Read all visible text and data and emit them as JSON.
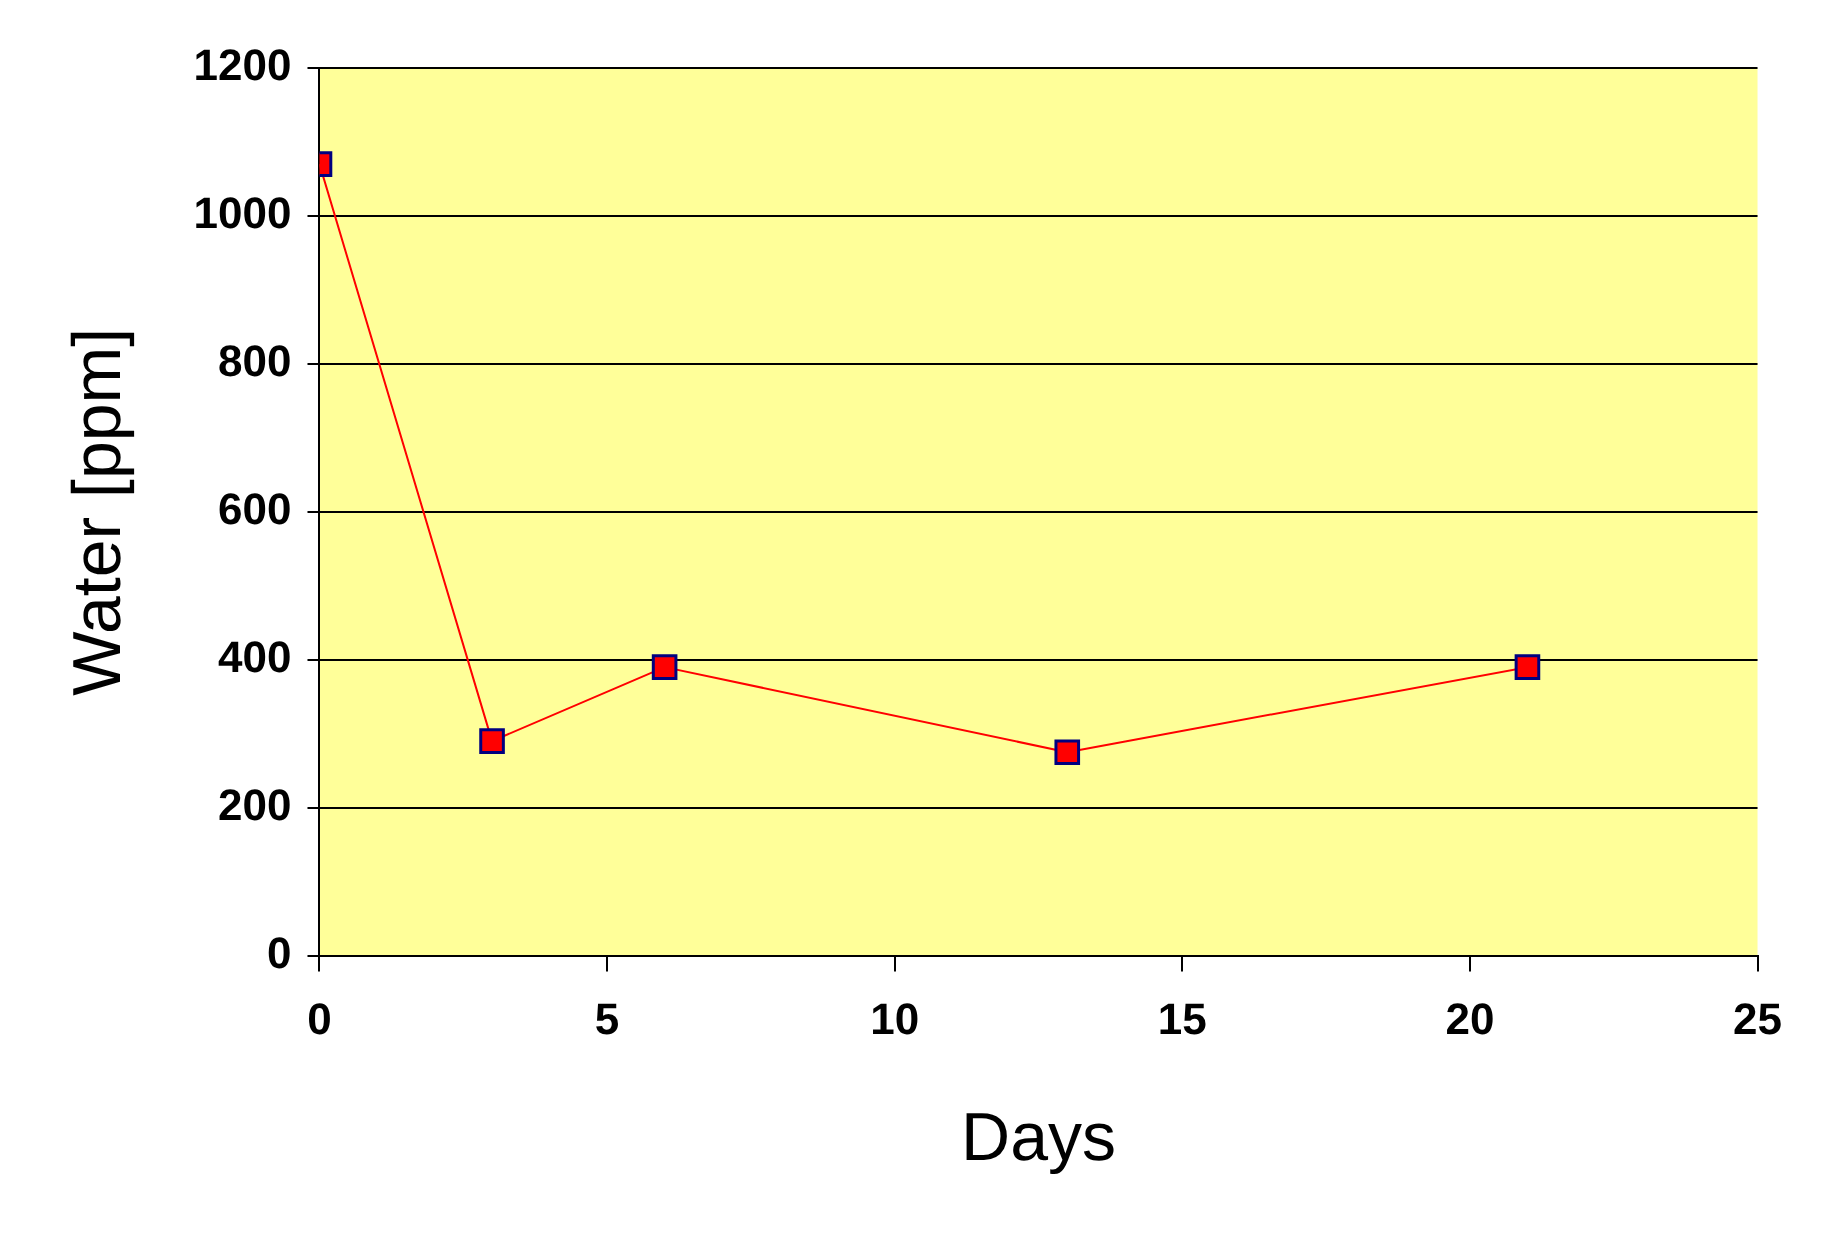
{
  "chart_data": {
    "type": "line",
    "xlabel": "Days",
    "ylabel": "Water [ppm]",
    "x": [
      0,
      3,
      6,
      13,
      21
    ],
    "series": [
      {
        "color": "#ff0000",
        "values": [
          1070,
          290,
          390,
          275,
          390
        ]
      }
    ],
    "xlim": [
      0,
      25
    ],
    "xticks": [
      0,
      5,
      10,
      15,
      20,
      25
    ],
    "ylim": [
      0,
      1200
    ],
    "yticks": [
      0,
      200,
      400,
      600,
      800,
      1000,
      1200
    ],
    "grid": "y",
    "legend": false,
    "marker": "square",
    "line_style": "solid"
  }
}
